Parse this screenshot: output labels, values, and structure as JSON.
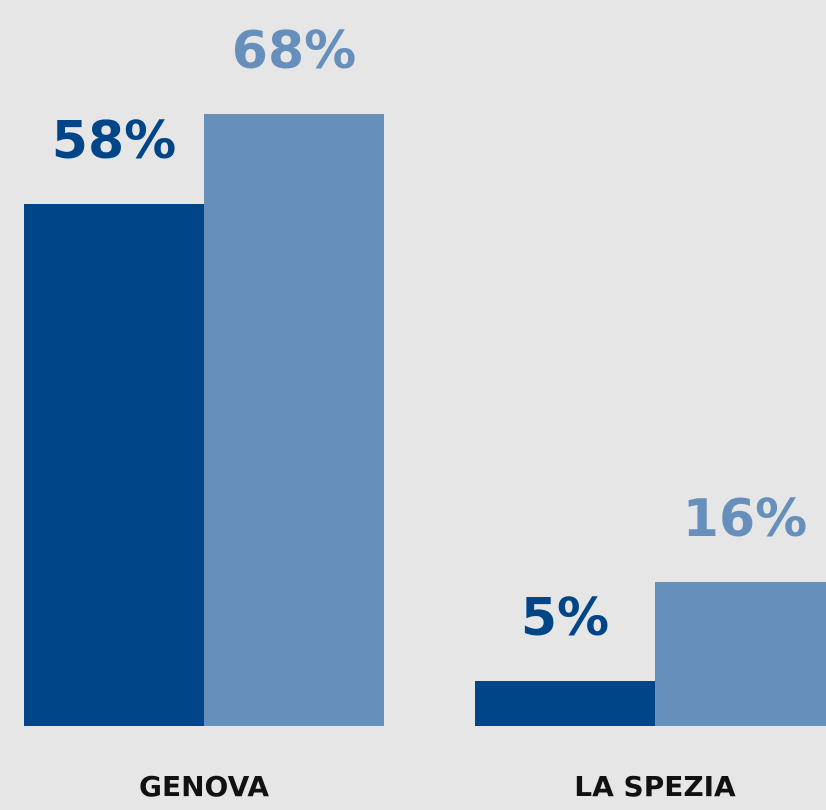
{
  "chart_data": {
    "type": "bar",
    "categories": [
      "GENOVA",
      "LA SPEZIA"
    ],
    "series": [
      {
        "color": "#004587",
        "values": [
          58,
          5
        ],
        "value_labels": [
          "58%",
          "5%"
        ]
      },
      {
        "color": "#6690bb",
        "values": [
          68,
          16
        ],
        "value_labels": [
          "68%",
          "16%"
        ]
      }
    ]
  }
}
